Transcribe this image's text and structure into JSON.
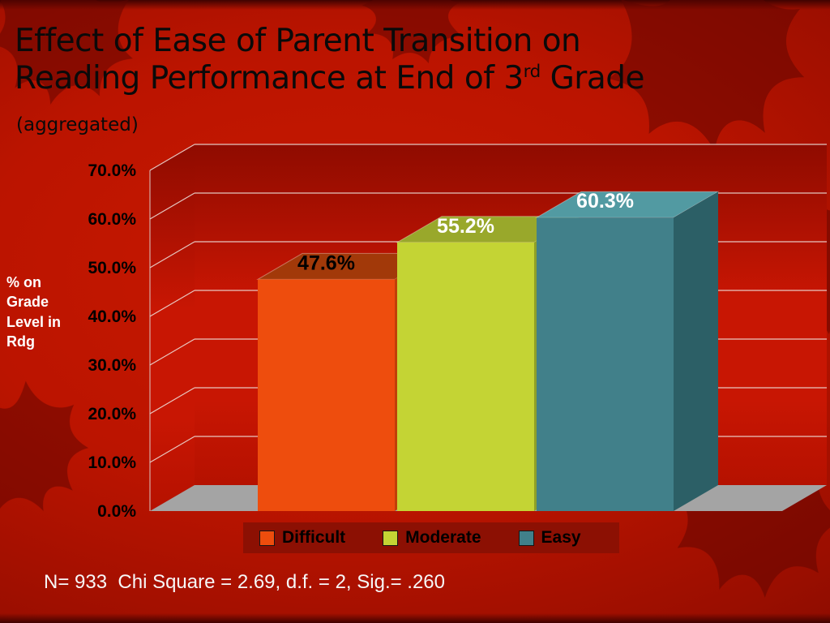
{
  "slide": {
    "title_line1": "Effect of Ease of Parent Transition on",
    "title_line2_pre": "Reading Performance  at End of 3",
    "title_sup": "rd",
    "title_line2_post": " Grade",
    "subtitle": "(aggregated)",
    "footnote": "N= 933  Chi Square = 2.69, d.f. = 2, Sig.= .260"
  },
  "chart_data": {
    "type": "bar",
    "title": "",
    "categories": [
      "Difficult",
      "Moderate",
      "Easy"
    ],
    "values": [
      47.6,
      55.2,
      60.3
    ],
    "value_labels": [
      "47.6%",
      "55.2%",
      "60.3%"
    ],
    "value_label_colors": [
      "#000000",
      "#ffffff",
      "#ffffff"
    ],
    "ylabel": "% on Grade Level in Rdg",
    "ylabel_lines": [
      "% on",
      "Grade",
      "Level in",
      "Rdg"
    ],
    "y_ticks": [
      "0.0%",
      "10.0%",
      "20.0%",
      "30.0%",
      "40.0%",
      "50.0%",
      "60.0%",
      "70.0%"
    ],
    "ylim": [
      0,
      70
    ],
    "grid": true,
    "legend_position": "bottom",
    "series_colors": {
      "Difficult": {
        "front": "#ee4d0d",
        "top": "#a23909",
        "side": "#c03f08"
      },
      "Moderate": {
        "front": "#c4d434",
        "top": "#99a82b",
        "side": "#8fa026"
      },
      "Easy": {
        "front": "#41808a",
        "top": "#529aa2",
        "side": "#2c5f66"
      }
    },
    "wall_colors": {
      "wall_top": "#8f0b00",
      "wall_mid": "#c81603",
      "wall_bottom": "#b51100",
      "floor": "#a4a4a4",
      "gridline": "#efe6e2"
    },
    "legend_strip_color": "#8c1003"
  }
}
